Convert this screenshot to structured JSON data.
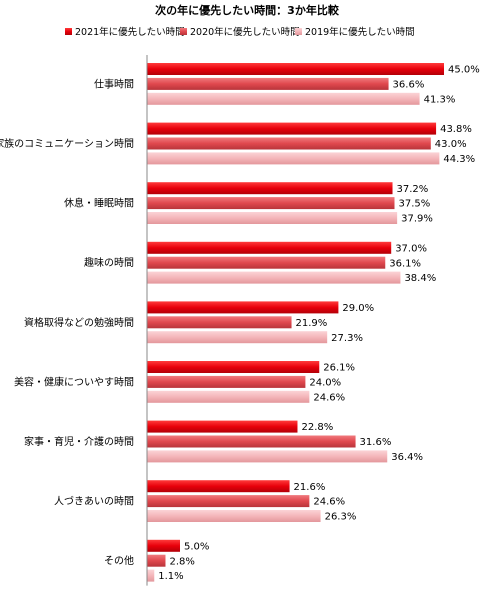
{
  "chart_data": {
    "type": "bar",
    "orientation": "horizontal",
    "title": "次の年に優先したい時間：3か年比較",
    "xlabel": "",
    "ylabel": "",
    "xlim": [
      0,
      45.0
    ],
    "grid": false,
    "legend_position": "top",
    "categories": [
      "仕事時間",
      "家族のコミュニケーション時間",
      "休息・睡眠時間",
      "趣味の時間",
      "資格取得などの勉強時間",
      "美容・健康についやす時間",
      "家事・育児・介護の時間",
      "人づきあいの時間",
      "その他"
    ],
    "series": [
      {
        "name": "2021年に優先したい時間",
        "color": "#e8000b",
        "values": [
          45.0,
          43.8,
          37.2,
          37.0,
          29.0,
          26.1,
          22.8,
          21.6,
          5.0
        ],
        "labels": [
          "45.0%",
          "43.8%",
          "37.2%",
          "37.0%",
          "29.0%",
          "26.1%",
          "22.8%",
          "21.6%",
          "5.0%"
        ]
      },
      {
        "name": "2020年に優先したい時間",
        "color": "#e0484e",
        "values": [
          36.6,
          43.0,
          37.5,
          36.1,
          21.9,
          24.0,
          31.6,
          24.6,
          2.8
        ],
        "labels": [
          "36.6%",
          "43.0%",
          "37.5%",
          "36.1%",
          "21.9%",
          "24.0%",
          "31.6%",
          "24.6%",
          "2.8%"
        ]
      },
      {
        "name": "2019年に優先したい時間",
        "color": "#f4b6ba",
        "values": [
          41.3,
          44.3,
          37.9,
          38.4,
          27.3,
          24.6,
          36.4,
          26.3,
          1.1
        ],
        "labels": [
          "41.3%",
          "44.3%",
          "37.9%",
          "38.4%",
          "27.3%",
          "24.6%",
          "36.4%",
          "26.3%",
          "1.1%"
        ]
      }
    ]
  }
}
